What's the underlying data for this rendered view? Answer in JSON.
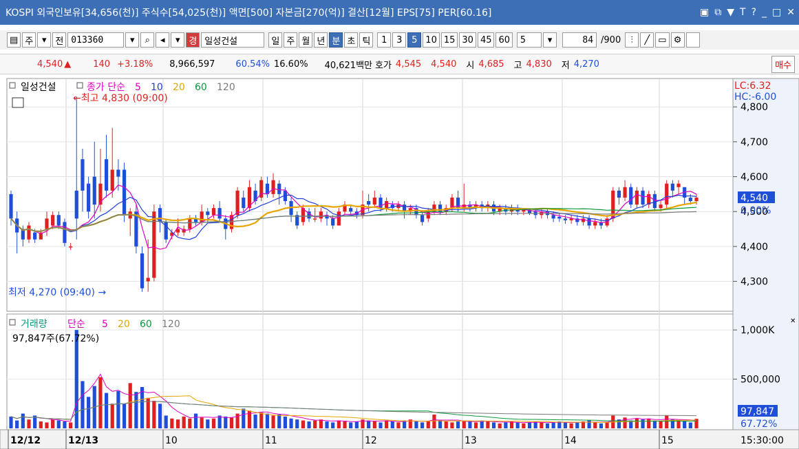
{
  "title_bar": {
    "text": "KOSPI 외국인보유[34,656(천)] 주식수[54,025(천)] 액면[500] 자본금[270(억)] 결산[12월] EPS[75] PER[60.16]",
    "icons": [
      "window-icon",
      "restore-icon",
      "pin-icon",
      "text-icon",
      "help-icon",
      "minimize-icon",
      "maximize-icon",
      "close-icon"
    ]
  },
  "toolbar": {
    "market": "주",
    "all": "전",
    "code": "013360",
    "stock_name_btn": "경",
    "stock_name": "일성건설",
    "period_buttons": [
      "일",
      "주",
      "월",
      "년",
      "분",
      "초",
      "틱"
    ],
    "selected_period": "분",
    "minute_buttons": [
      "1",
      "3",
      "5",
      "10",
      "15",
      "30",
      "45",
      "60"
    ],
    "selected_minute": "5",
    "count_value": "5",
    "position": "84",
    "total": "/900"
  },
  "quote": {
    "price": "4,540",
    "arrow": "▲",
    "change": "140",
    "change_pct": "+3.18%",
    "volume": "8,966,597",
    "vol_ratio": "60.54%",
    "turnover": "16.60%",
    "amount": "40,621백만",
    "bid_label": "호가",
    "bid": "4,545",
    "ask": "4,540",
    "open_label": "시",
    "open": "4,685",
    "high_label": "고",
    "high": "4,830",
    "low_label": "저",
    "low": "4,270",
    "buy_btn": "매수"
  },
  "price_chart": {
    "name": "일성건설",
    "ma_label": "종가 단순",
    "ma_periods": [
      "5",
      "10",
      "20",
      "60",
      "120"
    ],
    "ma_colors": [
      "#e000c0",
      "#1f3fd8",
      "#e8a400",
      "#0a9a3a",
      "#7a7a7a"
    ],
    "high_annot": "←최고 4,830 (09:00)",
    "low_annot": "최저 4,270 (09:40) →",
    "lc": "LC:6.32",
    "hc": "HC:-6.00",
    "y_ticks": [
      "4,800",
      "4,700",
      "4,600",
      "4,500",
      "4,400",
      "4,300"
    ],
    "current_price": "4,540",
    "current_pct": "0.00%"
  },
  "volume_chart": {
    "name": "거래량",
    "ma_label": "단순",
    "ma_periods": [
      "5",
      "20",
      "60",
      "120"
    ],
    "value_label": "97,847주(67.72%)",
    "y_ticks": [
      "1,000K",
      "500,000"
    ],
    "current_volume": "97,847",
    "current_pct": "67.72%"
  },
  "x_axis": {
    "labels": [
      "12/12",
      "12/13",
      "10",
      "11",
      "12",
      "13",
      "14",
      "15"
    ],
    "time": "15:30:00"
  },
  "chart_data": {
    "type": "candlestick",
    "y_range": [
      4230,
      4830
    ],
    "volume_range_k": [
      0,
      1050
    ],
    "candles": [
      [
        4550,
        4480,
        4560,
        4460
      ],
      [
        4480,
        4440,
        4500,
        4380
      ],
      [
        4450,
        4420,
        4460,
        4400
      ],
      [
        4420,
        4460,
        4470,
        4410
      ],
      [
        4440,
        4420,
        4450,
        4410
      ],
      [
        4420,
        4440,
        4450,
        4420
      ],
      [
        4450,
        4480,
        4500,
        4430
      ],
      [
        4460,
        4490,
        4500,
        4450
      ],
      [
        4490,
        4460,
        4500,
        4450
      ],
      [
        4470,
        4410,
        4480,
        4400
      ],
      [
        4400,
        4400,
        4410,
        4390
      ],
      [
        4560,
        4480,
        4830,
        4420
      ],
      [
        4650,
        4560,
        4680,
        4500
      ],
      [
        4580,
        4500,
        4600,
        4480
      ],
      [
        4600,
        4520,
        4700,
        4480
      ],
      [
        4520,
        4580,
        4680,
        4500
      ],
      [
        4650,
        4560,
        4720,
        4540
      ],
      [
        4560,
        4620,
        4740,
        4540
      ],
      [
        4620,
        4600,
        4650,
        4560
      ],
      [
        4620,
        4490,
        4640,
        4470
      ],
      [
        4480,
        4500,
        4510,
        4430
      ],
      [
        4500,
        4400,
        4520,
        4380
      ],
      [
        4380,
        4280,
        4400,
        4270
      ],
      [
        4300,
        4310,
        4420,
        4270
      ],
      [
        4310,
        4500,
        4520,
        4300
      ],
      [
        4510,
        4470,
        4520,
        4440
      ],
      [
        4470,
        4420,
        4480,
        4410
      ],
      [
        4430,
        4440,
        4450,
        4420
      ],
      [
        4440,
        4450,
        4480,
        4430
      ],
      [
        4440,
        4450,
        4460,
        4430
      ],
      [
        4450,
        4480,
        4490,
        4440
      ],
      [
        4480,
        4470,
        4490,
        4460
      ],
      [
        4470,
        4500,
        4520,
        4460
      ],
      [
        4500,
        4490,
        4510,
        4470
      ],
      [
        4490,
        4510,
        4520,
        4480
      ],
      [
        4510,
        4480,
        4530,
        4470
      ],
      [
        4480,
        4450,
        4490,
        4420
      ],
      [
        4450,
        4490,
        4500,
        4440
      ],
      [
        4490,
        4560,
        4570,
        4480
      ],
      [
        4540,
        4510,
        4560,
        4500
      ],
      [
        4510,
        4570,
        4590,
        4500
      ],
      [
        4560,
        4530,
        4580,
        4520
      ],
      [
        4540,
        4590,
        4600,
        4530
      ],
      [
        4580,
        4550,
        4600,
        4540
      ],
      [
        4550,
        4590,
        4610,
        4540
      ],
      [
        4580,
        4550,
        4590,
        4520
      ],
      [
        4560,
        4530,
        4570,
        4520
      ],
      [
        4530,
        4490,
        4540,
        4470
      ],
      [
        4490,
        4460,
        4500,
        4450
      ],
      [
        4470,
        4510,
        4520,
        4460
      ],
      [
        4500,
        4480,
        4510,
        4470
      ],
      [
        4480,
        4480,
        4510,
        4470
      ],
      [
        4480,
        4500,
        4510,
        4470
      ],
      [
        4490,
        4480,
        4500,
        4460
      ],
      [
        4480,
        4460,
        4490,
        4450
      ],
      [
        4460,
        4500,
        4510,
        4460
      ],
      [
        4500,
        4520,
        4530,
        4490
      ],
      [
        4510,
        4500,
        4520,
        4490
      ],
      [
        4500,
        4490,
        4510,
        4480
      ],
      [
        4490,
        4520,
        4560,
        4480
      ],
      [
        4530,
        4520,
        4550,
        4500
      ],
      [
        4520,
        4540,
        4560,
        4510
      ],
      [
        4540,
        4510,
        4550,
        4500
      ],
      [
        4510,
        4530,
        4540,
        4500
      ],
      [
        4520,
        4510,
        4530,
        4500
      ],
      [
        4510,
        4520,
        4530,
        4500
      ],
      [
        4520,
        4500,
        4530,
        4480
      ],
      [
        4500,
        4510,
        4520,
        4490
      ],
      [
        4510,
        4490,
        4520,
        4480
      ],
      [
        4490,
        4470,
        4500,
        4460
      ],
      [
        4480,
        4500,
        4510,
        4470
      ],
      [
        4500,
        4520,
        4530,
        4490
      ],
      [
        4520,
        4500,
        4530,
        4490
      ],
      [
        4500,
        4510,
        4520,
        4490
      ],
      [
        4510,
        4540,
        4550,
        4500
      ],
      [
        4540,
        4510,
        4560,
        4500
      ],
      [
        4510,
        4520,
        4580,
        4500
      ],
      [
        4520,
        4510,
        4530,
        4500
      ],
      [
        4510,
        4520,
        4530,
        4500
      ],
      [
        4520,
        4510,
        4530,
        4500
      ],
      [
        4510,
        4520,
        4530,
        4500
      ],
      [
        4520,
        4500,
        4530,
        4490
      ],
      [
        4500,
        4510,
        4520,
        4490
      ],
      [
        4510,
        4500,
        4520,
        4490
      ],
      [
        4500,
        4510,
        4520,
        4490
      ],
      [
        4510,
        4500,
        4520,
        4490
      ],
      [
        4500,
        4510,
        4510,
        4490
      ],
      [
        4505,
        4495,
        4510,
        4490
      ],
      [
        4500,
        4490,
        4510,
        4480
      ],
      [
        4490,
        4500,
        4510,
        4480
      ],
      [
        4500,
        4490,
        4510,
        4480
      ],
      [
        4490,
        4480,
        4500,
        4470
      ],
      [
        4485,
        4480,
        4495,
        4470
      ],
      [
        4480,
        4475,
        4490,
        4465
      ],
      [
        4475,
        4480,
        4490,
        4465
      ],
      [
        4480,
        4470,
        4490,
        4460
      ],
      [
        4470,
        4480,
        4490,
        4460
      ],
      [
        4480,
        4460,
        4490,
        4450
      ],
      [
        4460,
        4470,
        4480,
        4450
      ],
      [
        4470,
        4460,
        4480,
        4450
      ],
      [
        4460,
        4480,
        4490,
        4455
      ],
      [
        4480,
        4560,
        4570,
        4470
      ],
      [
        4560,
        4540,
        4570,
        4520
      ],
      [
        4540,
        4570,
        4590,
        4530
      ],
      [
        4570,
        4520,
        4580,
        4510
      ],
      [
        4520,
        4560,
        4570,
        4510
      ],
      [
        4560,
        4520,
        4570,
        4510
      ],
      [
        4520,
        4550,
        4560,
        4510
      ],
      [
        4550,
        4510,
        4560,
        4500
      ],
      [
        4510,
        4520,
        4530,
        4500
      ],
      [
        4520,
        4580,
        4590,
        4510
      ],
      [
        4580,
        4560,
        4590,
        4540
      ],
      [
        4570,
        4580,
        4590,
        4550
      ],
      [
        4570,
        4540,
        4550,
        4520
      ],
      [
        4540,
        4530,
        4550,
        4520
      ],
      [
        4530,
        4540,
        4550,
        4520
      ]
    ],
    "volumes_k": [
      120,
      80,
      150,
      90,
      130,
      70,
      60,
      90,
      80,
      70,
      60,
      1000,
      480,
      320,
      430,
      520,
      360,
      250,
      380,
      250,
      460,
      370,
      420,
      310,
      280,
      250,
      130,
      100,
      90,
      120,
      100,
      150,
      110,
      90,
      100,
      130,
      120,
      110,
      150,
      200,
      180,
      140,
      160,
      150,
      130,
      140,
      120,
      100,
      90,
      80,
      70,
      80,
      90,
      70,
      60,
      80,
      70,
      60,
      70,
      90,
      80,
      70,
      60,
      80,
      70,
      60,
      80,
      90,
      70,
      60,
      70,
      140,
      80,
      70,
      60,
      70,
      80,
      70,
      60,
      80,
      70,
      60,
      50,
      60,
      70,
      60,
      50,
      60,
      70,
      60,
      50,
      60,
      70,
      60,
      50,
      60,
      70,
      80,
      60,
      50,
      60,
      130,
      90,
      110,
      80,
      100,
      90,
      100,
      80,
      70,
      130,
      90,
      80,
      70,
      60,
      97
    ]
  }
}
